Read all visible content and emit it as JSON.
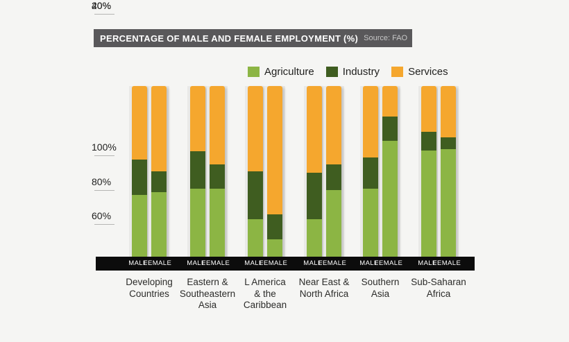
{
  "header": {
    "title": "PERCENTAGE OF MALE AND FEMALE EMPLOYMENT (%)",
    "source": "Source: FAO"
  },
  "legend": {
    "items": [
      {
        "label": "Agriculture",
        "color": "#8cb544"
      },
      {
        "label": "Industry",
        "color": "#3f5d20"
      },
      {
        "label": "Services",
        "color": "#f5a72e"
      }
    ]
  },
  "y_axis": [
    "100%",
    "80%",
    "60%",
    "40%",
    "20%"
  ],
  "chart_data": {
    "type": "bar",
    "stacked": true,
    "unit": "%",
    "title": "PERCENTAGE OF MALE AND FEMALE EMPLOYMENT (%)",
    "source": "Source: FAO",
    "legend_position": "top",
    "grid": false,
    "ylim": [
      0,
      100
    ],
    "yticks": [
      20,
      40,
      60,
      80,
      100
    ],
    "bar_labels": [
      "MALE",
      "FEMALE"
    ],
    "series_order": [
      "Agriculture",
      "Industry",
      "Services"
    ],
    "colors": {
      "Agriculture": "#8cb544",
      "Industry": "#3f5d20",
      "Services": "#f5a72e"
    },
    "groups": [
      {
        "label": "Developing Countries",
        "label_lines": [
          "Developing",
          "Countries"
        ],
        "bars": [
          {
            "sex": "MALE",
            "Agriculture": 36,
            "Industry": 21,
            "Services": 43
          },
          {
            "sex": "FEMALE",
            "Agriculture": 38,
            "Industry": 12,
            "Services": 50
          }
        ]
      },
      {
        "label": "Eastern & Southeastern Asia",
        "label_lines": [
          "Eastern &",
          "Southeastern",
          "Asia"
        ],
        "bars": [
          {
            "sex": "MALE",
            "Agriculture": 40,
            "Industry": 22,
            "Services": 38
          },
          {
            "sex": "FEMALE",
            "Agriculture": 40,
            "Industry": 14,
            "Services": 46
          }
        ]
      },
      {
        "label": "L America & the Caribbean",
        "label_lines": [
          "L America",
          "& the",
          "Caribbean"
        ],
        "bars": [
          {
            "sex": "MALE",
            "Agriculture": 22,
            "Industry": 28,
            "Services": 50
          },
          {
            "sex": "FEMALE",
            "Agriculture": 10,
            "Industry": 15,
            "Services": 75
          }
        ]
      },
      {
        "label": "Near East & North Africa",
        "label_lines": [
          "Near East &",
          "North Africa"
        ],
        "bars": [
          {
            "sex": "MALE",
            "Agriculture": 22,
            "Industry": 27,
            "Services": 51
          },
          {
            "sex": "FEMALE",
            "Agriculture": 39,
            "Industry": 15,
            "Services": 46
          }
        ]
      },
      {
        "label": "Southern Asia",
        "label_lines": [
          "Southern",
          "Asia"
        ],
        "bars": [
          {
            "sex": "MALE",
            "Agriculture": 40,
            "Industry": 18,
            "Services": 42
          },
          {
            "sex": "FEMALE",
            "Agriculture": 68,
            "Industry": 14,
            "Services": 18
          }
        ]
      },
      {
        "label": "Sub-Saharan Africa",
        "label_lines": [
          "Sub-Saharan",
          "Africa"
        ],
        "bars": [
          {
            "sex": "MALE",
            "Agriculture": 62,
            "Industry": 11,
            "Services": 27
          },
          {
            "sex": "FEMALE",
            "Agriculture": 63,
            "Industry": 7,
            "Services": 30
          }
        ]
      }
    ]
  }
}
